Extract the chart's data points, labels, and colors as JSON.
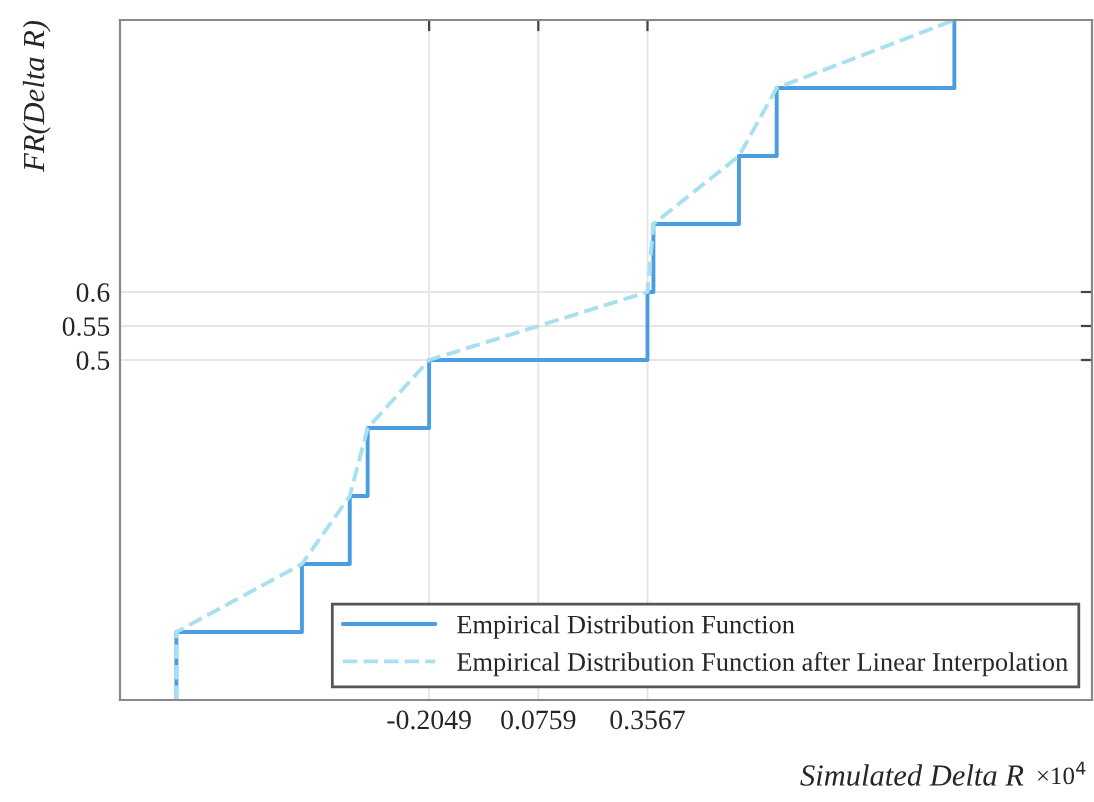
{
  "chart_data": {
    "type": "step",
    "xlabel": "Simulated Delta R",
    "ylabel": "FR(Delta R)",
    "annotations": [
      "×10$^{4}$"
    ],
    "xlim": [
      -1.0,
      1.5
    ],
    "ylim": [
      0,
      1.0
    ],
    "xticks": [
      -0.2049,
      0.0759,
      0.3567
    ],
    "yticks": [
      0.5,
      0.55,
      0.6
    ],
    "grid": true,
    "legend": "bottom right",
    "series": [
      {
        "name": "Empirical Distribution Function",
        "color": "#4a9de0",
        "line_style": "solid",
        "x": [
          -0.855,
          -0.855,
          -0.532,
          -0.409,
          -0.363,
          -0.2049,
          0.3567,
          0.372,
          0.592,
          0.689,
          1.146
        ],
        "values": [
          0,
          0.1,
          0.2,
          0.3,
          0.4,
          0.5,
          0.6,
          0.7,
          0.8,
          0.9,
          1.0
        ]
      },
      {
        "name": "Empirical Distribution Function after Linear Interpolation",
        "type": "line",
        "color": "#a8e0f0",
        "line_style": "dashed",
        "x": [
          -0.855,
          -0.855,
          -0.532,
          -0.409,
          -0.363,
          -0.2049,
          0.3567,
          0.372,
          0.592,
          0.689,
          1.146
        ],
        "values": [
          0,
          0.1,
          0.2,
          0.3,
          0.4,
          0.5,
          0.6,
          0.7,
          0.8,
          0.9,
          1.0
        ]
      }
    ]
  }
}
